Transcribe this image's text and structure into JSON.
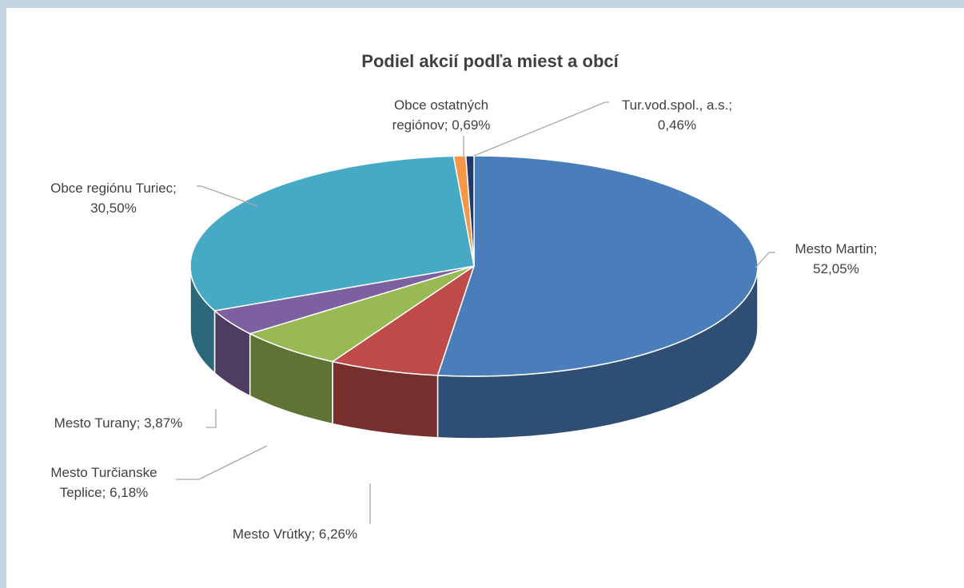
{
  "chart_data": {
    "type": "pie",
    "title": "Podiel akcií podľa miest a obcí",
    "slices": [
      {
        "name": "Mesto Martin",
        "value": 52.05,
        "label_lines": [
          "Mesto Martin;",
          "52,05%"
        ],
        "color": "#4a7ebb"
      },
      {
        "name": "Mesto Vrútky",
        "value": 6.26,
        "label_lines": [
          "Mesto Vrútky; 6,26%"
        ],
        "color": "#be4b48"
      },
      {
        "name": "Mesto Turčianske Teplice",
        "value": 6.18,
        "label_lines": [
          "Mesto Turčianske",
          "Teplice; 6,18%"
        ],
        "color": "#98b954"
      },
      {
        "name": "Mesto Turany",
        "value": 3.87,
        "label_lines": [
          "Mesto Turany; 3,87%"
        ],
        "color": "#7d60a0"
      },
      {
        "name": "Obce regiónu Turiec",
        "value": 30.5,
        "label_lines": [
          "Obce regiónu Turiec;",
          "30,50%"
        ],
        "color": "#46aac5"
      },
      {
        "name": "Obce ostatných regiónov",
        "value": 0.69,
        "label_lines": [
          "Obce ostatných",
          "regiónov; 0,69%"
        ],
        "color": "#f79646"
      },
      {
        "name": "Tur.vod.spol., a.s.",
        "value": 0.46,
        "label_lines": [
          "Tur.vod.spol., a.s.;",
          "0,46%"
        ],
        "color": "#1f3a6b"
      }
    ]
  }
}
